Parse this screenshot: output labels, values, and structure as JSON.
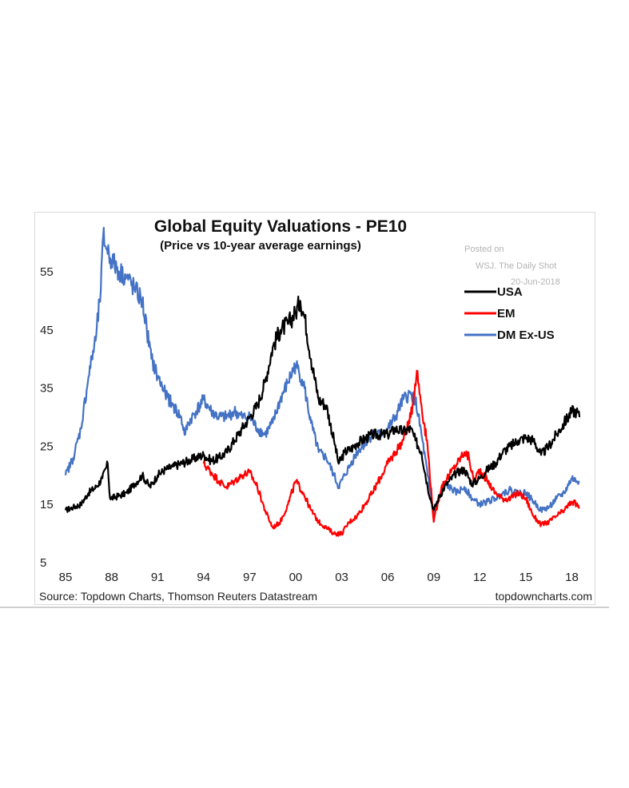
{
  "chart_data": {
    "type": "line",
    "title": "Global Equity Valuations - PE10",
    "subtitle": "(Price vs 10-year average earnings)",
    "watermark": [
      "Posted on",
      "WSJ. The Daily Shot",
      "20-Jun-2018"
    ],
    "source": "Source: Topdown Charts, Thomson Reuters Datastream",
    "brand": "topdowncharts.com",
    "xlabel": "",
    "ylabel": "",
    "x_ticks": [
      "85",
      "88",
      "91",
      "94",
      "97",
      "00",
      "03",
      "06",
      "09",
      "12",
      "15",
      "18"
    ],
    "y_ticks": [
      "55",
      "45",
      "35",
      "25",
      "15",
      "5"
    ],
    "xlim": [
      1985,
      2018.6
    ],
    "ylim": [
      5,
      62
    ],
    "grid": false,
    "legend_position": "top-right",
    "series": [
      {
        "name": "USA",
        "color": "#000000",
        "points": [
          [
            1985.0,
            14
          ],
          [
            1985.5,
            14.5
          ],
          [
            1986.0,
            15
          ],
          [
            1986.5,
            17
          ],
          [
            1987.0,
            18
          ],
          [
            1987.4,
            19.5
          ],
          [
            1987.75,
            22
          ],
          [
            1987.9,
            16
          ],
          [
            1988.5,
            16.5
          ],
          [
            1989.0,
            17
          ],
          [
            1989.5,
            18.5
          ],
          [
            1990.0,
            20
          ],
          [
            1990.5,
            18
          ],
          [
            1991.0,
            20
          ],
          [
            1991.5,
            21
          ],
          [
            1992.0,
            21.5
          ],
          [
            1993.0,
            22.5
          ],
          [
            1994.0,
            23.5
          ],
          [
            1994.5,
            22.5
          ],
          [
            1995.0,
            23
          ],
          [
            1995.5,
            24
          ],
          [
            1996.0,
            26
          ],
          [
            1996.5,
            28
          ],
          [
            1997.0,
            30
          ],
          [
            1997.5,
            32
          ],
          [
            1998.0,
            36
          ],
          [
            1998.5,
            42
          ],
          [
            1999.0,
            45
          ],
          [
            1999.5,
            46
          ],
          [
            2000.0,
            48
          ],
          [
            2000.3,
            50
          ],
          [
            2000.6,
            47
          ],
          [
            2001.0,
            40
          ],
          [
            2001.5,
            33
          ],
          [
            2002.0,
            32
          ],
          [
            2002.5,
            26
          ],
          [
            2002.8,
            22
          ],
          [
            2003.2,
            24
          ],
          [
            2003.6,
            24.5
          ],
          [
            2004.0,
            25.5
          ],
          [
            2005.0,
            27
          ],
          [
            2006.0,
            27
          ],
          [
            2006.5,
            28
          ],
          [
            2007.0,
            27.5
          ],
          [
            2007.5,
            28
          ],
          [
            2007.8,
            26
          ],
          [
            2008.2,
            24
          ],
          [
            2008.6,
            18
          ],
          [
            2009.0,
            14
          ],
          [
            2009.3,
            16
          ],
          [
            2009.7,
            18
          ],
          [
            2010.0,
            19
          ],
          [
            2010.5,
            20.5
          ],
          [
            2011.0,
            21
          ],
          [
            2011.5,
            18.5
          ],
          [
            2012.0,
            19.5
          ],
          [
            2012.5,
            21
          ],
          [
            2013.0,
            22
          ],
          [
            2013.5,
            24
          ],
          [
            2014.0,
            25
          ],
          [
            2014.5,
            26
          ],
          [
            2015.0,
            26.5
          ],
          [
            2015.5,
            26
          ],
          [
            2016.0,
            23.5
          ],
          [
            2016.5,
            25
          ],
          [
            2017.0,
            27
          ],
          [
            2017.5,
            29
          ],
          [
            2018.0,
            31
          ],
          [
            2018.3,
            31
          ],
          [
            2018.5,
            30
          ]
        ]
      },
      {
        "name": "EM",
        "color": "#ff0000",
        "points": [
          [
            1994.0,
            22
          ],
          [
            1994.5,
            20.5
          ],
          [
            1995.0,
            19
          ],
          [
            1995.5,
            18
          ],
          [
            1996.0,
            19
          ],
          [
            1996.5,
            20
          ],
          [
            1997.0,
            20.5
          ],
          [
            1997.5,
            18
          ],
          [
            1998.0,
            14
          ],
          [
            1998.5,
            11
          ],
          [
            1999.0,
            12
          ],
          [
            1999.5,
            15
          ],
          [
            2000.0,
            19
          ],
          [
            2000.5,
            17
          ],
          [
            2001.0,
            14
          ],
          [
            2001.5,
            12
          ],
          [
            2002.0,
            11
          ],
          [
            2002.5,
            10
          ],
          [
            2003.0,
            10
          ],
          [
            2003.5,
            12
          ],
          [
            2004.0,
            13
          ],
          [
            2005.0,
            17
          ],
          [
            2006.0,
            22
          ],
          [
            2006.5,
            24
          ],
          [
            2007.0,
            26
          ],
          [
            2007.5,
            30
          ],
          [
            2007.9,
            38
          ],
          [
            2008.2,
            32
          ],
          [
            2008.6,
            25
          ],
          [
            2009.0,
            12
          ],
          [
            2009.5,
            18
          ],
          [
            2010.0,
            20
          ],
          [
            2010.5,
            22
          ],
          [
            2011.0,
            24
          ],
          [
            2011.3,
            23
          ],
          [
            2011.6,
            19
          ],
          [
            2012.0,
            21
          ],
          [
            2012.5,
            19
          ],
          [
            2013.0,
            17
          ],
          [
            2013.5,
            16
          ],
          [
            2014.0,
            16
          ],
          [
            2014.5,
            17
          ],
          [
            2015.0,
            16
          ],
          [
            2015.5,
            13
          ],
          [
            2016.0,
            11.5
          ],
          [
            2016.5,
            12
          ],
          [
            2017.0,
            13
          ],
          [
            2017.5,
            14
          ],
          [
            2018.0,
            15.5
          ],
          [
            2018.3,
            15
          ],
          [
            2018.5,
            14.5
          ]
        ]
      },
      {
        "name": "DM Ex-US",
        "color": "#4472c4",
        "points": [
          [
            1985.0,
            20
          ],
          [
            1985.5,
            23
          ],
          [
            1986.0,
            28
          ],
          [
            1986.5,
            37
          ],
          [
            1987.0,
            44
          ],
          [
            1987.3,
            52
          ],
          [
            1987.45,
            61
          ],
          [
            1987.7,
            59
          ],
          [
            1988.0,
            57
          ],
          [
            1988.5,
            55
          ],
          [
            1989.0,
            54
          ],
          [
            1989.5,
            52
          ],
          [
            1990.0,
            50
          ],
          [
            1990.3,
            45
          ],
          [
            1990.6,
            40
          ],
          [
            1991.0,
            37
          ],
          [
            1991.5,
            34
          ],
          [
            1992.0,
            32
          ],
          [
            1992.5,
            30
          ],
          [
            1992.8,
            27
          ],
          [
            1993.0,
            29
          ],
          [
            1993.5,
            31
          ],
          [
            1994.0,
            33
          ],
          [
            1994.5,
            31
          ],
          [
            1995.0,
            30
          ],
          [
            1995.5,
            30
          ],
          [
            1996.0,
            31
          ],
          [
            1996.5,
            30
          ],
          [
            1997.0,
            30
          ],
          [
            1997.5,
            28
          ],
          [
            1998.0,
            27
          ],
          [
            1998.5,
            29
          ],
          [
            1999.0,
            33
          ],
          [
            1999.5,
            36
          ],
          [
            2000.0,
            39
          ],
          [
            2000.5,
            36
          ],
          [
            2001.0,
            29
          ],
          [
            2001.5,
            24
          ],
          [
            2002.0,
            23
          ],
          [
            2002.5,
            20
          ],
          [
            2002.8,
            18
          ],
          [
            2003.2,
            20
          ],
          [
            2003.6,
            22
          ],
          [
            2004.0,
            24
          ],
          [
            2005.0,
            27
          ],
          [
            2005.5,
            27
          ],
          [
            2006.0,
            28
          ],
          [
            2006.5,
            30
          ],
          [
            2007.0,
            33
          ],
          [
            2007.5,
            34
          ],
          [
            2007.8,
            33
          ],
          [
            2008.2,
            27
          ],
          [
            2008.6,
            20
          ],
          [
            2009.0,
            13
          ],
          [
            2009.3,
            16
          ],
          [
            2009.7,
            18.5
          ],
          [
            2010.0,
            18
          ],
          [
            2010.5,
            17
          ],
          [
            2011.0,
            18
          ],
          [
            2011.5,
            16
          ],
          [
            2012.0,
            15
          ],
          [
            2012.5,
            15.5
          ],
          [
            2013.0,
            16
          ],
          [
            2013.5,
            17
          ],
          [
            2014.0,
            17.5
          ],
          [
            2014.5,
            17
          ],
          [
            2015.0,
            17
          ],
          [
            2015.5,
            15.5
          ],
          [
            2016.0,
            14
          ],
          [
            2016.5,
            14.5
          ],
          [
            2017.0,
            16
          ],
          [
            2017.5,
            17
          ],
          [
            2018.0,
            19.5
          ],
          [
            2018.3,
            19
          ],
          [
            2018.5,
            19
          ]
        ]
      }
    ]
  }
}
